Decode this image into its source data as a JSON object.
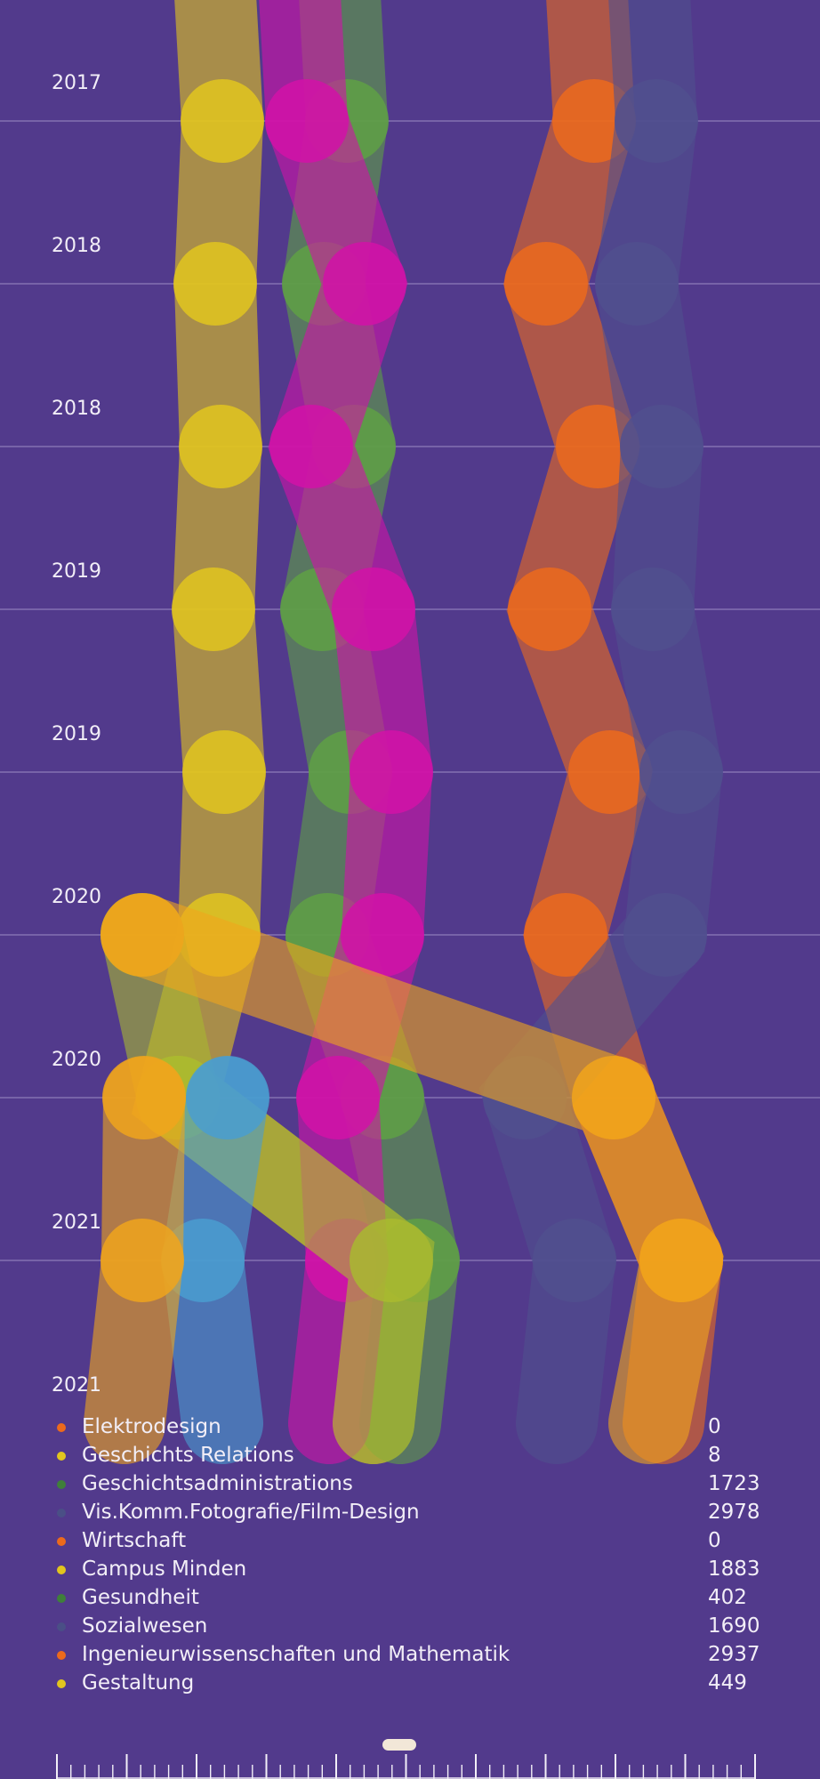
{
  "colors": {
    "background": "#523a8c",
    "gridline": "#9c8cc4",
    "yellow": "#e2c51e",
    "green": "#5fa045",
    "magenta": "#d212a8",
    "orange": "#ec6a1c",
    "blue": "#50508e",
    "teal": "#4a9dd0",
    "amber": "#f0a51c"
  },
  "chart_data": {
    "type": "line",
    "title": "",
    "xlabel": "",
    "ylabel": "",
    "y_axis_labels": [
      "2017",
      "2018",
      "2018",
      "2019",
      "2019",
      "2020",
      "2020",
      "2021",
      "2021"
    ],
    "grid": true,
    "legend_position": "bottom",
    "series": [
      {
        "color": "#e2c51e",
        "points": [
          {
            "row": 0,
            "x": 250
          },
          {
            "row": 1,
            "x": 242
          },
          {
            "row": 2,
            "x": 248
          },
          {
            "row": 3,
            "x": 240
          },
          {
            "row": 4,
            "x": 252
          },
          {
            "row": 5,
            "x": 246
          },
          {
            "row": 6,
            "x": 200
          },
          {
            "row": 7,
            "x": 440
          }
        ]
      },
      {
        "color": "#5fa045",
        "points": [
          {
            "row": 0,
            "x": 390
          },
          {
            "row": 1,
            "x": 364
          },
          {
            "row": 2,
            "x": 398
          },
          {
            "row": 3,
            "x": 362
          },
          {
            "row": 4,
            "x": 394
          },
          {
            "row": 5,
            "x": 368
          },
          {
            "row": 6,
            "x": 430
          },
          {
            "row": 7,
            "x": 470
          }
        ]
      },
      {
        "color": "#d212a8",
        "points": [
          {
            "row": 0,
            "x": 345
          },
          {
            "row": 1,
            "x": 410
          },
          {
            "row": 2,
            "x": 350
          },
          {
            "row": 3,
            "x": 420
          },
          {
            "row": 4,
            "x": 440
          },
          {
            "row": 5,
            "x": 430
          },
          {
            "row": 6,
            "x": 380
          },
          {
            "row": 7,
            "x": 390
          }
        ]
      },
      {
        "color": "#ec6a1c",
        "points": [
          {
            "row": 0,
            "x": 668
          },
          {
            "row": 1,
            "x": 614
          },
          {
            "row": 2,
            "x": 672
          },
          {
            "row": 3,
            "x": 618
          },
          {
            "row": 4,
            "x": 686
          },
          {
            "row": 5,
            "x": 636
          },
          {
            "row": 6,
            "x": 690
          },
          {
            "row": 7,
            "x": 766
          }
        ]
      },
      {
        "color": "#50508e",
        "points": [
          {
            "row": 0,
            "x": 738
          },
          {
            "row": 1,
            "x": 716
          },
          {
            "row": 2,
            "x": 744
          },
          {
            "row": 3,
            "x": 734
          },
          {
            "row": 4,
            "x": 766
          },
          {
            "row": 5,
            "x": 748
          },
          {
            "row": 6,
            "x": 590
          },
          {
            "row": 7,
            "x": 646
          }
        ]
      },
      {
        "color": "#a8b830",
        "points": [
          {
            "row": 5,
            "x": 160
          },
          {
            "row": 6,
            "x": 200
          },
          {
            "row": 7,
            "x": 440
          }
        ]
      },
      {
        "color": "#4a9dd0",
        "points": [
          {
            "row": 6,
            "x": 256
          },
          {
            "row": 7,
            "x": 228
          },
          {
            "row": 8,
            "x": 250
          }
        ]
      },
      {
        "color": "#f0a51c",
        "points": [
          {
            "row": 6,
            "x": 162
          },
          {
            "row": 7,
            "x": 160
          }
        ]
      },
      {
        "color": "#f0a51c",
        "points": [
          {
            "row": 5,
            "x": 160
          },
          {
            "row": 6,
            "x": 690
          },
          {
            "row": 7,
            "x": 766
          },
          {
            "row": 8,
            "x": 730
          }
        ]
      }
    ]
  },
  "legend": [
    {
      "label": "Elektrodesign",
      "value": "0",
      "color": "#ec6a1c"
    },
    {
      "label": "Geschichts Relations",
      "value": "8",
      "color": "#e2c51e"
    },
    {
      "label": "Geschichtsadministrations",
      "value": "1723",
      "color": "#3f7f3a"
    },
    {
      "label": "Vis.Komm.Fotografie/Film-Design",
      "value": "2978",
      "color": "#4a4f86"
    },
    {
      "label": "Wirtschaft",
      "value": "0",
      "color": "#ec6a1c"
    },
    {
      "label": "Campus Minden",
      "value": "1883",
      "color": "#e2c51e"
    },
    {
      "label": "Gesundheit",
      "value": "402",
      "color": "#3f7f3a"
    },
    {
      "label": "Sozialwesen",
      "value": "1690",
      "color": "#4a4f86"
    },
    {
      "label": "Ingenieurwissenschaften und Mathematik",
      "value": "2937",
      "color": "#ec6a1c"
    },
    {
      "label": "Gestaltung",
      "value": "449",
      "color": "#e2c51e"
    }
  ]
}
